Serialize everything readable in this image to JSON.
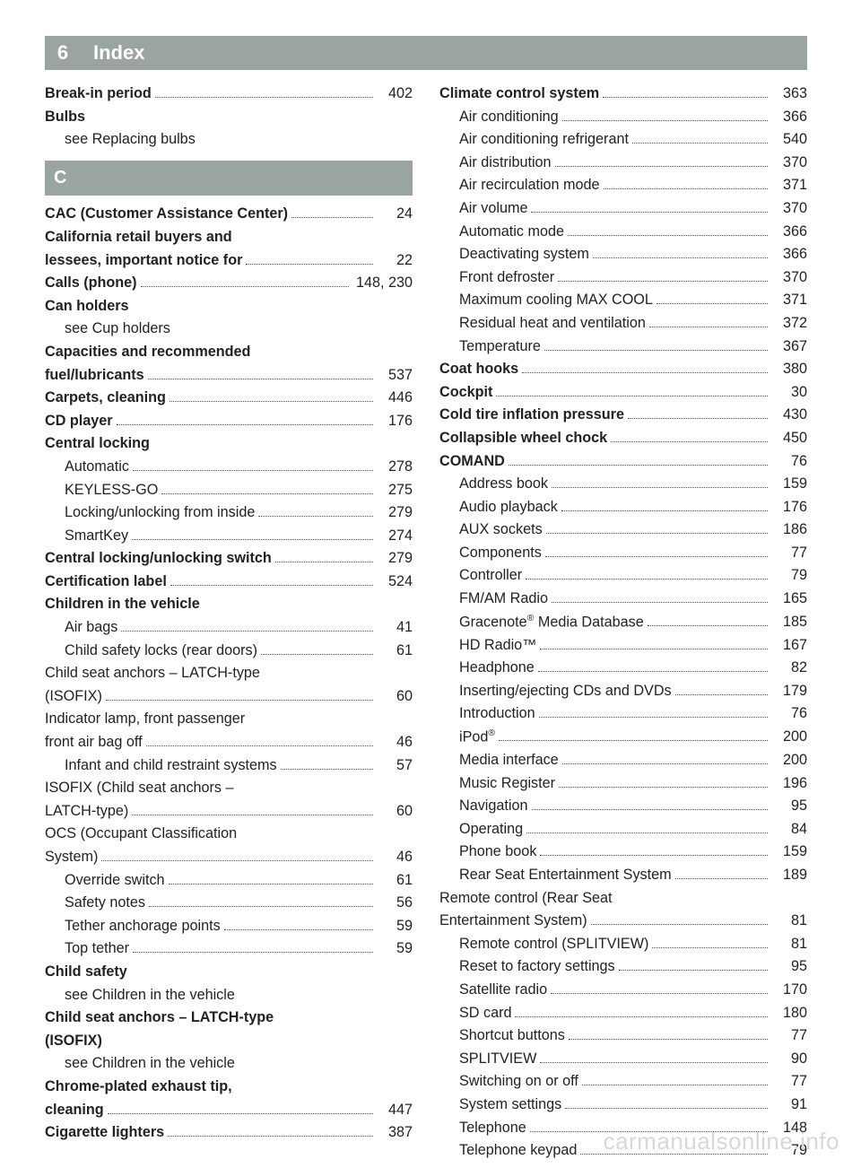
{
  "header": {
    "page_number": "6",
    "title": "Index"
  },
  "watermark": "carmanualsonline.info",
  "left_column": [
    {
      "type": "entry",
      "bold": true,
      "label": "Break-in period",
      "page": "402"
    },
    {
      "type": "noleader",
      "bold": true,
      "label": "Bulbs"
    },
    {
      "type": "noleader",
      "indent": true,
      "label": "see Replacing bulbs"
    },
    {
      "type": "section",
      "label": "C"
    },
    {
      "type": "entry",
      "bold": true,
      "label": "CAC (Customer Assistance Center)",
      "page": "24"
    },
    {
      "type": "multiline",
      "bold": true,
      "line1": "California retail buyers and",
      "line2": "lessees, important notice for",
      "page": "22"
    },
    {
      "type": "entry",
      "bold": true,
      "label": "Calls (phone)",
      "page": "148, 230"
    },
    {
      "type": "noleader",
      "bold": true,
      "label": "Can holders"
    },
    {
      "type": "noleader",
      "indent": true,
      "label": "see Cup holders"
    },
    {
      "type": "multiline",
      "bold": true,
      "line1": "Capacities and recommended",
      "line2": "fuel/lubricants",
      "page": "537"
    },
    {
      "type": "entry",
      "bold": true,
      "label": "Carpets, cleaning",
      "page": "446"
    },
    {
      "type": "entry",
      "bold": true,
      "label": "CD player",
      "page": "176"
    },
    {
      "type": "noleader",
      "bold": true,
      "label": "Central locking"
    },
    {
      "type": "entry",
      "indent": true,
      "label": "Automatic",
      "page": "278"
    },
    {
      "type": "entry",
      "indent": true,
      "label": "KEYLESS-GO",
      "page": "275"
    },
    {
      "type": "entry",
      "indent": true,
      "label": "Locking/unlocking from inside",
      "page": "279"
    },
    {
      "type": "entry",
      "indent": true,
      "label": "SmartKey",
      "page": "274"
    },
    {
      "type": "entry",
      "bold": true,
      "label": "Central locking/unlocking switch",
      "page": "279"
    },
    {
      "type": "entry",
      "bold": true,
      "label": "Certification label",
      "page": "524"
    },
    {
      "type": "noleader",
      "bold": true,
      "label": "Children in the vehicle"
    },
    {
      "type": "entry",
      "indent": true,
      "label": "Air bags",
      "page": "41"
    },
    {
      "type": "entry",
      "indent": true,
      "label": "Child safety locks (rear doors)",
      "page": "61"
    },
    {
      "type": "multiline",
      "indent": true,
      "line1": "Child seat anchors – LATCH-type",
      "line2": "(ISOFIX)",
      "page": "60"
    },
    {
      "type": "multiline",
      "indent": true,
      "line1": "Indicator lamp, front passenger",
      "line2": "front air bag off",
      "page": "46"
    },
    {
      "type": "entry",
      "indent": true,
      "label": "Infant and child restraint systems",
      "page": "57"
    },
    {
      "type": "multiline",
      "indent": true,
      "line1": "ISOFIX (Child seat anchors –",
      "line2": "LATCH-type)",
      "page": "60"
    },
    {
      "type": "multiline",
      "indent": true,
      "line1": "OCS (Occupant Classification",
      "line2": "System)",
      "page": "46"
    },
    {
      "type": "entry",
      "indent": true,
      "label": "Override switch",
      "page": "61"
    },
    {
      "type": "entry",
      "indent": true,
      "label": "Safety notes",
      "page": "56"
    },
    {
      "type": "entry",
      "indent": true,
      "label": "Tether anchorage points",
      "page": "59"
    },
    {
      "type": "entry",
      "indent": true,
      "label": "Top tether",
      "page": "59"
    },
    {
      "type": "noleader",
      "bold": true,
      "label": "Child safety"
    },
    {
      "type": "noleader",
      "indent": true,
      "label": "see Children in the vehicle"
    },
    {
      "type": "noleader",
      "bold": true,
      "label": "Child seat anchors – LATCH-type"
    },
    {
      "type": "noleader",
      "bold": true,
      "label": "(ISOFIX)"
    },
    {
      "type": "noleader",
      "indent": true,
      "label": "see Children in the vehicle"
    },
    {
      "type": "multiline",
      "bold": true,
      "line1": "Chrome-plated exhaust tip,",
      "line2": "cleaning",
      "page": "447"
    },
    {
      "type": "entry",
      "bold": true,
      "label": "Cigarette lighters",
      "page": "387"
    }
  ],
  "right_column": [
    {
      "type": "entry",
      "bold": true,
      "label": "Climate control system",
      "page": "363"
    },
    {
      "type": "entry",
      "indent": true,
      "label": "Air conditioning",
      "page": "366"
    },
    {
      "type": "entry",
      "indent": true,
      "label": "Air conditioning refrigerant",
      "page": "540"
    },
    {
      "type": "entry",
      "indent": true,
      "label": "Air distribution",
      "page": "370"
    },
    {
      "type": "entry",
      "indent": true,
      "label": "Air recirculation mode",
      "page": "371"
    },
    {
      "type": "entry",
      "indent": true,
      "label": "Air volume",
      "page": "370"
    },
    {
      "type": "entry",
      "indent": true,
      "label": "Automatic mode",
      "page": "366"
    },
    {
      "type": "entry",
      "indent": true,
      "label": "Deactivating system",
      "page": "366"
    },
    {
      "type": "entry",
      "indent": true,
      "label": "Front defroster",
      "page": "370"
    },
    {
      "type": "entry",
      "indent": true,
      "label": "Maximum cooling MAX COOL",
      "page": "371"
    },
    {
      "type": "entry",
      "indent": true,
      "label": "Residual heat and ventilation",
      "page": "372"
    },
    {
      "type": "entry",
      "indent": true,
      "label": "Temperature",
      "page": "367"
    },
    {
      "type": "entry",
      "bold": true,
      "label": "Coat hooks",
      "page": "380"
    },
    {
      "type": "entry",
      "bold": true,
      "label": "Cockpit",
      "page": "30"
    },
    {
      "type": "entry",
      "bold": true,
      "label": "Cold tire inflation pressure",
      "page": "430"
    },
    {
      "type": "entry",
      "bold": true,
      "label": "Collapsible wheel chock",
      "page": "450"
    },
    {
      "type": "entry",
      "bold": true,
      "label": "COMAND",
      "page": "76"
    },
    {
      "type": "entry",
      "indent": true,
      "label": "Address book",
      "page": "159"
    },
    {
      "type": "entry",
      "indent": true,
      "label": "Audio playback",
      "page": "176"
    },
    {
      "type": "entry",
      "indent": true,
      "label": "AUX sockets",
      "page": "186"
    },
    {
      "type": "entry",
      "indent": true,
      "label": "Components",
      "page": "77"
    },
    {
      "type": "entry",
      "indent": true,
      "label": "Controller",
      "page": "79"
    },
    {
      "type": "entry",
      "indent": true,
      "label": "FM/AM Radio",
      "page": "165"
    },
    {
      "type": "entry",
      "indent": true,
      "html": true,
      "label": "Gracenote<sup>®</sup> Media Database",
      "page": "185"
    },
    {
      "type": "entry",
      "indent": true,
      "html": true,
      "label": "HD Radio™",
      "page": "167"
    },
    {
      "type": "entry",
      "indent": true,
      "label": "Headphone",
      "page": "82"
    },
    {
      "type": "entry",
      "indent": true,
      "label": "Inserting/ejecting CDs and DVDs",
      "page": "179"
    },
    {
      "type": "entry",
      "indent": true,
      "label": "Introduction",
      "page": "76"
    },
    {
      "type": "entry",
      "indent": true,
      "html": true,
      "label": "iPod<sup>®</sup>",
      "page": "200"
    },
    {
      "type": "entry",
      "indent": true,
      "label": "Media interface",
      "page": "200"
    },
    {
      "type": "entry",
      "indent": true,
      "label": "Music Register",
      "page": "196"
    },
    {
      "type": "entry",
      "indent": true,
      "label": "Navigation",
      "page": "95"
    },
    {
      "type": "entry",
      "indent": true,
      "label": "Operating",
      "page": "84"
    },
    {
      "type": "entry",
      "indent": true,
      "label": "Phone book",
      "page": "159"
    },
    {
      "type": "entry",
      "indent": true,
      "label": "Rear Seat Entertainment System",
      "page": "189"
    },
    {
      "type": "multiline",
      "indent": true,
      "line1": "Remote control (Rear Seat",
      "line2": "Entertainment System)",
      "page": "81"
    },
    {
      "type": "entry",
      "indent": true,
      "label": "Remote control (SPLITVIEW)",
      "page": "81"
    },
    {
      "type": "entry",
      "indent": true,
      "label": "Reset to factory settings",
      "page": "95"
    },
    {
      "type": "entry",
      "indent": true,
      "label": "Satellite radio",
      "page": "170"
    },
    {
      "type": "entry",
      "indent": true,
      "label": "SD card",
      "page": "180"
    },
    {
      "type": "entry",
      "indent": true,
      "label": "Shortcut buttons",
      "page": "77"
    },
    {
      "type": "entry",
      "indent": true,
      "label": "SPLITVIEW",
      "page": "90"
    },
    {
      "type": "entry",
      "indent": true,
      "label": "Switching on or off",
      "page": "77"
    },
    {
      "type": "entry",
      "indent": true,
      "label": "System settings",
      "page": "91"
    },
    {
      "type": "entry",
      "indent": true,
      "label": "Telephone",
      "page": "148"
    },
    {
      "type": "entry",
      "indent": true,
      "label": "Telephone keypad",
      "page": "79"
    }
  ]
}
